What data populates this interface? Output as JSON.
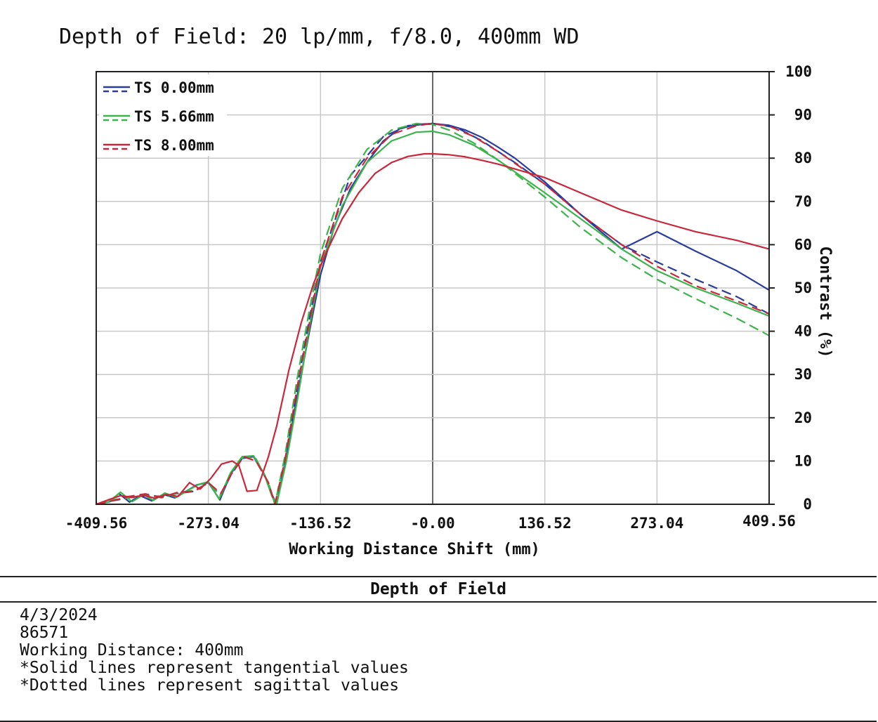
{
  "chart_data": {
    "type": "line",
    "title": "Depth of Field: 20 lp/mm, f/8.0, 400mm WD",
    "xlabel": "Working Distance Shift (mm)",
    "ylabel": "Contrast (%)",
    "xlim": [
      -409.56,
      409.56
    ],
    "ylim": [
      0,
      100
    ],
    "x_ticks": [
      -409.56,
      -273.04,
      -136.52,
      0,
      136.52,
      273.04,
      409.56
    ],
    "x_tick_labels": [
      "-409.56",
      "-273.04",
      "-136.52",
      "-0.00",
      "136.52",
      "273.04",
      "409.56"
    ],
    "y_ticks": [
      0,
      10,
      20,
      30,
      40,
      50,
      60,
      70,
      80,
      90,
      100
    ],
    "y_tick_labels": [
      "0",
      "10",
      "20",
      "30",
      "40",
      "50",
      "60",
      "70",
      "80",
      "90",
      "100"
    ],
    "y_axis_side": "right",
    "grid": true,
    "legend_position": "top-left",
    "legend": [
      {
        "label": "TS 0.00mm",
        "color": "#2a3d9c"
      },
      {
        "label": "TS 5.66mm",
        "color": "#3cb44b"
      },
      {
        "label": "TS 8.00mm",
        "color": "#c8283a"
      }
    ],
    "series": [
      {
        "name": "TS 0.00mm",
        "style": "solid",
        "color": "#2a3d9c",
        "x": [
          -409.56,
          -393,
          -382,
          -369,
          -356,
          -342,
          -328,
          -314,
          -300,
          -287,
          -273,
          -259,
          -246,
          -232,
          -218,
          -205,
          -195,
          -190,
          -180,
          -165,
          -150,
          -136.52,
          -120,
          -100,
          -80,
          -60,
          -40,
          -20,
          0,
          20,
          40,
          60,
          80,
          100,
          136.52,
          180,
          230,
          273.04,
          320,
          370,
          409.56
        ],
        "y": [
          0,
          0.6,
          2.5,
          0.5,
          2,
          0.8,
          2.3,
          1.5,
          3,
          4.5,
          5,
          1,
          7,
          10.6,
          11,
          7,
          2,
          0,
          9,
          25,
          40,
          53,
          64,
          73,
          79,
          84,
          86.8,
          87.8,
          88,
          87.6,
          86.5,
          84.8,
          82.5,
          80,
          74.5,
          67,
          59,
          63,
          58.5,
          54,
          49.5
        ]
      },
      {
        "name": "TS 0.00mm",
        "style": "dashed",
        "color": "#2a3d9c",
        "x": [
          -409.56,
          -390,
          -370,
          -350,
          -330,
          -310,
          -290,
          -273,
          -258,
          -245,
          -230,
          -215,
          -200,
          -192,
          -180,
          -165,
          -150,
          -136.52,
          -100,
          -60,
          -30,
          0,
          30,
          60,
          100,
          136.52,
          180,
          230,
          273.04,
          320,
          370,
          409.56
        ],
        "y": [
          0,
          0.8,
          1.5,
          2,
          1.8,
          2.5,
          3,
          5,
          2,
          7,
          11,
          10,
          5,
          0,
          10,
          27,
          43,
          56,
          76,
          85,
          87.5,
          88,
          87,
          84,
          79,
          74,
          67,
          60,
          56,
          52,
          48,
          44
        ]
      },
      {
        "name": "TS 5.66mm",
        "style": "solid",
        "color": "#3cb44b",
        "x": [
          -409.56,
          -395,
          -380,
          -366,
          -352,
          -340,
          -326,
          -312,
          -298,
          -285,
          -273,
          -260,
          -246,
          -232,
          -218,
          -205,
          -196,
          -190,
          -178,
          -163,
          -150,
          -136.52,
          -110,
          -80,
          -50,
          -20,
          0,
          20,
          50,
          80,
          110,
          136.52,
          180,
          230,
          273.04,
          320,
          370,
          409.56
        ],
        "y": [
          0,
          0.5,
          2.8,
          0.6,
          2.2,
          0.9,
          2.6,
          1.6,
          3.2,
          4.6,
          5.2,
          1.2,
          7.3,
          11,
          11.2,
          7,
          2,
          0,
          10,
          26,
          41,
          55,
          69,
          79,
          84,
          86,
          86.2,
          85.4,
          83,
          79.5,
          75.5,
          72,
          66,
          59,
          54,
          50,
          46.5,
          43.5
        ]
      },
      {
        "name": "TS 5.66mm",
        "style": "dashed",
        "color": "#3cb44b",
        "x": [
          -409.56,
          -390,
          -370,
          -350,
          -330,
          -310,
          -290,
          -273,
          -258,
          -245,
          -230,
          -215,
          -200,
          -192,
          -180,
          -165,
          -150,
          -136.52,
          -110,
          -80,
          -50,
          -20,
          0,
          20,
          50,
          80,
          110,
          136.52,
          180,
          230,
          273.04,
          320,
          370,
          409.56
        ],
        "y": [
          0,
          1,
          1.5,
          2.2,
          1.5,
          2.6,
          3.2,
          5,
          2,
          7.5,
          11,
          10.5,
          5,
          0,
          11,
          29,
          45,
          58,
          73,
          82,
          86.5,
          88,
          87.8,
          86.5,
          83.5,
          79.5,
          75,
          71,
          64,
          57,
          52,
          47.5,
          43,
          39
        ]
      },
      {
        "name": "TS 8.00mm",
        "style": "solid",
        "color": "#c8283a",
        "x": [
          -409.56,
          -395,
          -380,
          -366,
          -352,
          -338,
          -324,
          -310,
          -296,
          -283,
          -270,
          -257,
          -244,
          -236,
          -226,
          -214,
          -200,
          -190,
          -175,
          -160,
          -145,
          -130,
          -110,
          -90,
          -70,
          -50,
          -30,
          -10,
          0,
          20,
          40,
          60,
          80,
          100,
          136.52,
          180,
          230,
          273.04,
          320,
          370,
          409.56
        ],
        "y": [
          0,
          1,
          2,
          1.6,
          2.1,
          1.4,
          2.3,
          1.8,
          5,
          3.5,
          6,
          9.3,
          10,
          9,
          3,
          3.2,
          11,
          18,
          31,
          42,
          51,
          58,
          66,
          72,
          76.5,
          79,
          80.4,
          81,
          81,
          80.8,
          80.3,
          79.5,
          78.6,
          77.5,
          75.5,
          72,
          68,
          65.5,
          63,
          61,
          59
        ]
      },
      {
        "name": "TS 8.00mm",
        "style": "dashed",
        "color": "#c8283a",
        "x": [
          -409.56,
          -390,
          -370,
          -350,
          -330,
          -310,
          -290,
          -273,
          -258,
          -245,
          -230,
          -215,
          -200,
          -192,
          -180,
          -165,
          -150,
          -136.52,
          -110,
          -80,
          -50,
          -20,
          0,
          20,
          50,
          80,
          110,
          136.52,
          180,
          230,
          273.04,
          320,
          370,
          409.56
        ],
        "y": [
          0,
          0.8,
          1.8,
          2.4,
          1.6,
          2.8,
          3,
          5,
          2.5,
          7,
          11,
          10,
          5,
          0,
          10,
          27,
          42,
          56,
          71,
          80,
          85.5,
          87.5,
          88,
          87.4,
          85,
          81.5,
          77.5,
          74,
          67,
          60,
          55,
          50.5,
          47,
          44
        ]
      }
    ]
  },
  "info_panel": {
    "title": "Depth of Field",
    "lines": [
      "4/3/2024",
      "86571",
      "Working Distance: 400mm",
      "*Solid lines represent tangential values",
      "*Dotted lines represent sagittal values"
    ]
  }
}
